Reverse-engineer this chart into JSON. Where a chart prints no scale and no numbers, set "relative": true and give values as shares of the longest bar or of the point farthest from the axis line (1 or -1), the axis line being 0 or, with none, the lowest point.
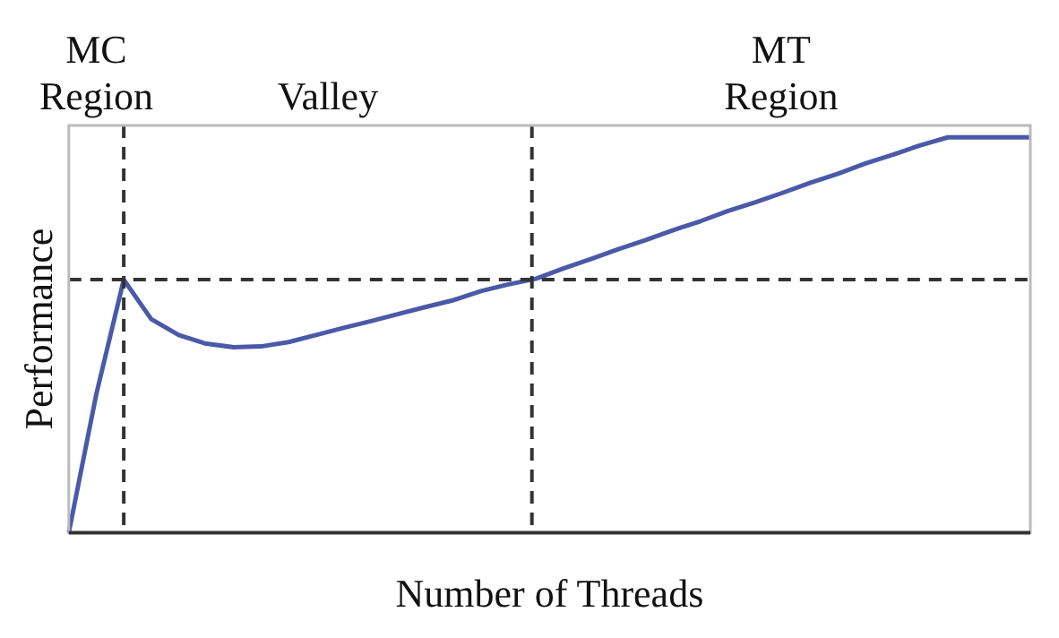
{
  "chart_data": {
    "type": "line",
    "relative": true,
    "xlabel": "Number of Threads",
    "ylabel": "Performance",
    "categories": [
      null,
      null,
      null,
      null,
      null,
      null,
      null,
      null,
      null,
      null,
      null,
      null,
      null,
      null,
      null,
      null,
      null,
      null,
      null,
      null,
      null,
      null,
      null,
      null,
      null,
      null,
      null,
      null,
      null,
      null,
      null,
      null,
      null,
      null,
      null,
      null
    ],
    "series": [
      {
        "color": "#4a5aa8",
        "values": [
          0,
          0.35,
          0.64,
          0.54,
          0.5,
          0.478,
          0.469,
          0.471,
          0.482,
          0.5,
          0.518,
          0.535,
          0.553,
          0.571,
          0.588,
          0.611,
          0.628,
          0.642,
          0.668,
          0.692,
          0.717,
          0.74,
          0.765,
          0.788,
          0.814,
          0.836,
          0.86,
          0.885,
          0.908,
          0.934,
          0.956,
          0.98,
          1,
          1,
          1,
          1
        ]
      }
    ],
    "ref_lines": [
      {
        "axis": "y",
        "value": 0.64,
        "color": "#333333",
        "line_style": "dashed"
      }
    ],
    "annotations": [
      "MC\nRegion",
      "Valley",
      "MT\nRegion"
    ],
    "grid": false,
    "legend": false,
    "marker": "none",
    "line_style": "solid"
  }
}
